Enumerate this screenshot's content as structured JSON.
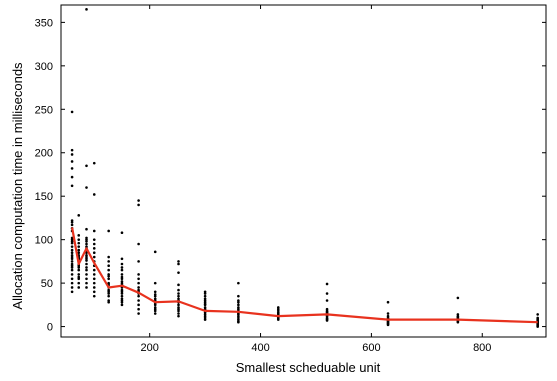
{
  "chart_data": {
    "type": "scatter",
    "title": "",
    "xlabel": "Smallest scheduable unit",
    "ylabel": "Allocation computation time in milliseconds",
    "xlim": [
      40,
      915
    ],
    "ylim": [
      -12,
      370
    ],
    "xticks": [
      200,
      400,
      600,
      800
    ],
    "yticks": [
      0,
      50,
      100,
      150,
      200,
      250,
      300,
      350
    ],
    "grid": false,
    "legend": "none",
    "colors": {
      "points": "#000000",
      "mean_line": "#e8321e"
    },
    "series": [
      {
        "kind": "points",
        "x": [
          60,
          60,
          60,
          60,
          60,
          60,
          60,
          60,
          60,
          60,
          60,
          60,
          60,
          60,
          60,
          60,
          60,
          60,
          60,
          60,
          60,
          60,
          60,
          60,
          60,
          60,
          60,
          60,
          60,
          60,
          60,
          60,
          72,
          72,
          72,
          72,
          72,
          72,
          72,
          72,
          72,
          72,
          72,
          72,
          72,
          72,
          72,
          72,
          72,
          72,
          72,
          72,
          86,
          86,
          86,
          86,
          86,
          86,
          86,
          86,
          86,
          86,
          86,
          86,
          86,
          86,
          86,
          86,
          86,
          86,
          86,
          86,
          86,
          86,
          86,
          100,
          100,
          100,
          100,
          100,
          100,
          100,
          100,
          100,
          100,
          100,
          100,
          100,
          100,
          100,
          100,
          100,
          126,
          126,
          126,
          126,
          126,
          126,
          126,
          126,
          126,
          126,
          126,
          126,
          126,
          126,
          126,
          126,
          126,
          150,
          150,
          150,
          150,
          150,
          150,
          150,
          150,
          150,
          150,
          150,
          150,
          150,
          150,
          150,
          150,
          150,
          150,
          150,
          150,
          180,
          180,
          180,
          180,
          180,
          180,
          180,
          180,
          180,
          180,
          180,
          180,
          180,
          180,
          180,
          180,
          210,
          210,
          210,
          210,
          210,
          210,
          210,
          210,
          210,
          210,
          210,
          210,
          210,
          210,
          252,
          252,
          252,
          252,
          252,
          252,
          252,
          252,
          252,
          252,
          252,
          252,
          252,
          252,
          252,
          252,
          300,
          300,
          300,
          300,
          300,
          300,
          300,
          300,
          300,
          300,
          300,
          300,
          300,
          300,
          300,
          300,
          360,
          360,
          360,
          360,
          360,
          360,
          360,
          360,
          360,
          360,
          360,
          360,
          360,
          360,
          360,
          360,
          432,
          432,
          432,
          432,
          432,
          432,
          432,
          432,
          432,
          432,
          432,
          432,
          520,
          520,
          520,
          520,
          520,
          520,
          520,
          520,
          520,
          520,
          520,
          520,
          520,
          520,
          520,
          630,
          630,
          630,
          630,
          630,
          630,
          630,
          630,
          630,
          630,
          630,
          630,
          756,
          756,
          756,
          756,
          756,
          756,
          756,
          756,
          756,
          756,
          900,
          900,
          900,
          900,
          900,
          900,
          900,
          900,
          900,
          900,
          900,
          900
        ],
        "y": [
          247,
          203,
          198,
          190,
          182,
          172,
          162,
          122,
          120,
          117,
          113,
          110,
          102,
          100,
          98,
          96,
          92,
          88,
          85,
          82,
          80,
          78,
          75,
          72,
          70,
          68,
          65,
          60,
          55,
          50,
          45,
          40,
          128,
          105,
          100,
          96,
          92,
          88,
          85,
          82,
          80,
          78,
          75,
          72,
          70,
          68,
          65,
          60,
          57,
          55,
          50,
          45,
          365,
          185,
          160,
          112,
          102,
          100,
          98,
          95,
          92,
          90,
          88,
          85,
          82,
          80,
          78,
          76,
          72,
          68,
          65,
          60,
          55,
          50,
          45,
          188,
          152,
          110,
          100,
          95,
          90,
          85,
          80,
          75,
          70,
          65,
          60,
          55,
          50,
          45,
          40,
          35,
          110,
          80,
          75,
          70,
          65,
          60,
          58,
          55,
          50,
          48,
          45,
          42,
          40,
          38,
          35,
          30,
          28,
          108,
          78,
          72,
          68,
          65,
          60,
          57,
          55,
          52,
          50,
          48,
          45,
          42,
          40,
          38,
          35,
          32,
          30,
          28,
          25,
          145,
          140,
          95,
          75,
          60,
          55,
          50,
          45,
          42,
          40,
          38,
          35,
          30,
          25,
          20,
          15,
          86,
          50,
          40,
          37,
          35,
          32,
          30,
          28,
          26,
          25,
          22,
          20,
          18,
          15,
          75,
          72,
          62,
          48,
          42,
          38,
          35,
          32,
          30,
          28,
          25,
          22,
          20,
          18,
          15,
          12,
          40,
          38,
          35,
          32,
          30,
          28,
          26,
          25,
          22,
          20,
          18,
          16,
          14,
          12,
          10,
          8,
          50,
          35,
          30,
          28,
          25,
          22,
          20,
          18,
          17,
          15,
          14,
          12,
          10,
          8,
          6,
          5,
          22,
          20,
          18,
          16,
          15,
          14,
          13,
          12,
          11,
          10,
          9,
          8,
          49,
          38,
          30,
          20,
          18,
          17,
          16,
          15,
          14,
          13,
          12,
          10,
          9,
          8,
          7,
          28,
          15,
          12,
          10,
          9,
          8,
          7,
          6,
          5,
          4,
          3,
          2,
          33,
          14,
          12,
          11,
          10,
          9,
          8,
          7,
          6,
          5,
          14,
          10,
          9,
          8,
          7,
          6,
          5,
          4,
          3,
          2,
          1,
          0
        ]
      },
      {
        "kind": "mean_line",
        "x": [
          60,
          72,
          86,
          100,
          126,
          150,
          180,
          210,
          252,
          300,
          360,
          432,
          520,
          630,
          756,
          900
        ],
        "y": [
          114,
          72,
          90,
          73,
          45,
          47,
          39,
          28,
          29,
          18,
          17,
          12,
          14,
          8,
          8,
          5
        ]
      }
    ]
  }
}
